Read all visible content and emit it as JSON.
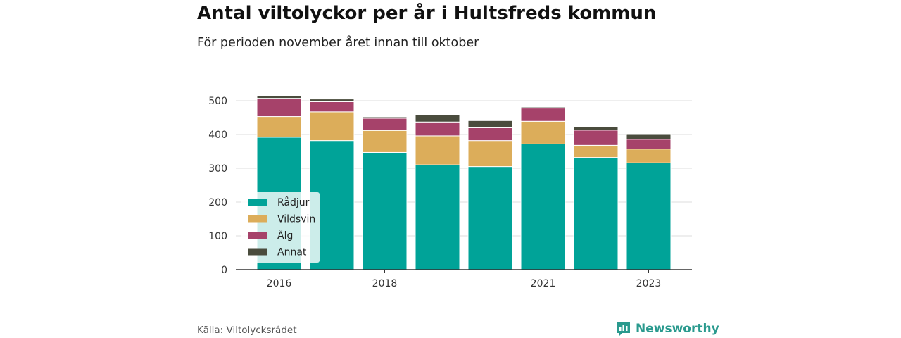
{
  "title": "Antal viltolyckor per år i Hultsfreds kommun",
  "subtitle": "För perioden november året innan till oktober",
  "source": "Källa: Viltolycksrådet",
  "brand": {
    "name": "Newsworthy",
    "icon": "newsworthy-logo-icon"
  },
  "chart_data": {
    "type": "bar",
    "stacked": true,
    "categories": [
      "2016",
      "2017",
      "2018",
      "2019",
      "2020",
      "2021",
      "2022",
      "2023"
    ],
    "x_tick_labels": [
      "2016",
      "",
      "2018",
      "",
      "",
      "2021",
      "",
      "2023"
    ],
    "series": [
      {
        "name": "Rådjur",
        "color": "#00a398",
        "values": [
          392,
          382,
          347,
          310,
          305,
          372,
          332,
          316
        ]
      },
      {
        "name": "Vildsvin",
        "color": "#dcad5a",
        "values": [
          61,
          85,
          65,
          86,
          77,
          67,
          36,
          41
        ]
      },
      {
        "name": "Älg",
        "color": "#a6426a",
        "values": [
          54,
          30,
          36,
          41,
          38,
          39,
          45,
          29
        ]
      },
      {
        "name": "Annat",
        "color": "#4a4c3d",
        "values": [
          8,
          8,
          4,
          22,
          21,
          3,
          10,
          14
        ]
      }
    ],
    "y_ticks": [
      0,
      100,
      200,
      300,
      400,
      500
    ],
    "ylim": [
      0,
      520
    ],
    "grid": true,
    "legend_position": "bottom-left, inside"
  }
}
